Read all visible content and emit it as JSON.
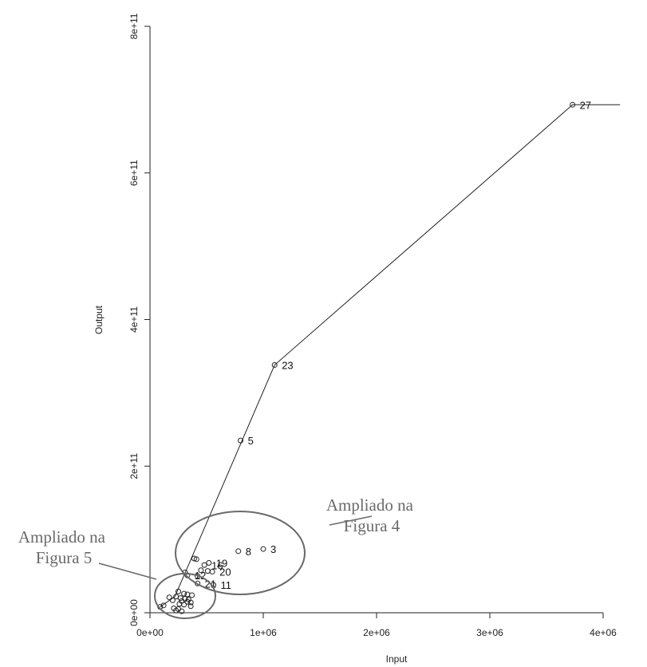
{
  "chart_data": {
    "type": "scatter",
    "xlabel": "Input",
    "ylabel": "Output",
    "xlim": [
      0,
      4000000
    ],
    "ylim": [
      0,
      800000000000
    ],
    "x_ticks": [
      {
        "value": 0,
        "label": "0e+00"
      },
      {
        "value": 1000000,
        "label": "1e+06"
      },
      {
        "value": 2000000,
        "label": "2e+06"
      },
      {
        "value": 3000000,
        "label": "3e+06"
      },
      {
        "value": 4000000,
        "label": "4e+06"
      }
    ],
    "y_ticks": [
      {
        "value": 0,
        "label": "0e+00"
      },
      {
        "value": 200000000000,
        "label": "2e+11"
      },
      {
        "value": 400000000000,
        "label": "4e+11"
      },
      {
        "value": 600000000000,
        "label": "6e+11"
      },
      {
        "value": 800000000000,
        "label": "8e+11"
      }
    ],
    "frontier": [
      {
        "x": 90000,
        "y": 8000000000
      },
      {
        "x": 220000,
        "y": 22000000000
      },
      {
        "x": 1100000,
        "y": 338000000000
      },
      {
        "x": 3730000,
        "y": 693000000000
      },
      {
        "x": 4150000,
        "y": 693000000000
      }
    ],
    "points": [
      {
        "label": "27",
        "x": 3730000,
        "y": 693000000000
      },
      {
        "label": "23",
        "x": 1100000,
        "y": 338000000000
      },
      {
        "label": "5",
        "x": 800000,
        "y": 235000000000
      },
      {
        "label": "3",
        "x": 1000000,
        "y": 87000000000
      },
      {
        "label": "8",
        "x": 780000,
        "y": 84000000000
      },
      {
        "label": "",
        "x": 390000,
        "y": 74000000000
      },
      {
        "label": "",
        "x": 410000,
        "y": 73000000000
      },
      {
        "label": "19",
        "x": 520000,
        "y": 68000000000
      },
      {
        "label": "16",
        "x": 480000,
        "y": 65000000000
      },
      {
        "label": "",
        "x": 450000,
        "y": 58000000000
      },
      {
        "label": "",
        "x": 510000,
        "y": 57000000000
      },
      {
        "label": "20",
        "x": 550000,
        "y": 56000000000
      },
      {
        "label": "12",
        "x": 330000,
        "y": 51000000000
      },
      {
        "label": "",
        "x": 310000,
        "y": 55000000000
      },
      {
        "label": "",
        "x": 420000,
        "y": 50000000000
      },
      {
        "label": "21",
        "x": 420000,
        "y": 40000000000
      },
      {
        "label": "11",
        "x": 560000,
        "y": 38000000000
      },
      {
        "label": "",
        "x": 250000,
        "y": 29000000000
      },
      {
        "label": "",
        "x": 300000,
        "y": 26000000000
      },
      {
        "label": "",
        "x": 330000,
        "y": 25000000000
      },
      {
        "label": "",
        "x": 370000,
        "y": 24000000000
      },
      {
        "label": "",
        "x": 170000,
        "y": 21000000000
      },
      {
        "label": "",
        "x": 230000,
        "y": 22000000000
      },
      {
        "label": "",
        "x": 270000,
        "y": 20000000000
      },
      {
        "label": "",
        "x": 310000,
        "y": 19000000000
      },
      {
        "label": "",
        "x": 340000,
        "y": 18000000000
      },
      {
        "label": "",
        "x": 200000,
        "y": 17000000000
      },
      {
        "label": "",
        "x": 280000,
        "y": 16000000000
      },
      {
        "label": "",
        "x": 330000,
        "y": 15000000000
      },
      {
        "label": "",
        "x": 360000,
        "y": 14000000000
      },
      {
        "label": "",
        "x": 260000,
        "y": 12000000000
      },
      {
        "label": "",
        "x": 300000,
        "y": 11000000000
      },
      {
        "label": "",
        "x": 90000,
        "y": 8000000000
      },
      {
        "label": "",
        "x": 120000,
        "y": 10000000000
      },
      {
        "label": "",
        "x": 210000,
        "y": 6000000000
      },
      {
        "label": "",
        "x": 250000,
        "y": 5000000000
      },
      {
        "label": "",
        "x": 230000,
        "y": 3000000000
      },
      {
        "label": "",
        "x": 280000,
        "y": 2000000000
      },
      {
        "label": "",
        "x": 360000,
        "y": 9000000000
      }
    ],
    "annotations": [
      {
        "lines": [
          "Ampliado na",
          "Figura 4"
        ]
      },
      {
        "lines": [
          "Ampliado na",
          "Figura 5"
        ]
      }
    ]
  }
}
